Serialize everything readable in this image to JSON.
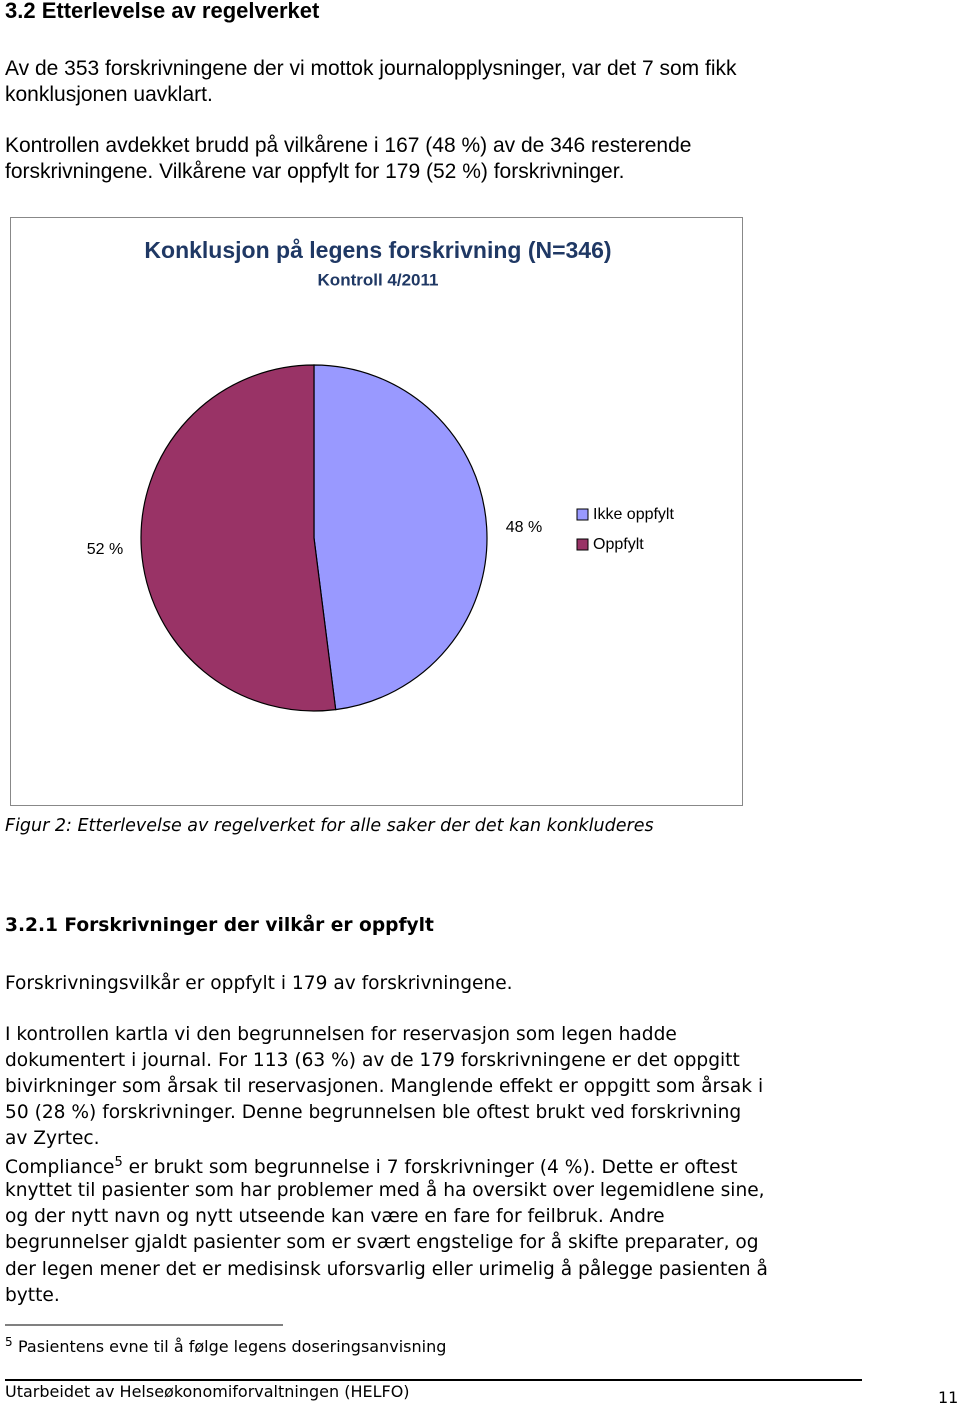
{
  "heading": "3.2 Etterlevelse av regelverket",
  "paragraph_1": [
    "Av de 353 forskrivningene der vi mottok journalopplysninger, var det 7 som fikk",
    "konklusjonen uavklart."
  ],
  "paragraph_2": [
    "Kontrollen avdekket brudd på vilkårene i 167 (48 %) av de 346 resterende",
    "forskrivningene. Vilkårene var oppfylt for 179 (52 %) forskrivninger."
  ],
  "chart_data": {
    "type": "pie",
    "title": "Konklusjon på legens forskrivning (N=346)",
    "subtitle": "Kontroll 4/2011",
    "categories": [
      "Ikke oppfylt",
      "Oppfylt"
    ],
    "values": [
      48,
      52
    ],
    "value_labels": [
      "48 %",
      "52 %"
    ],
    "colors": [
      "#9999ff",
      "#993366"
    ],
    "legend": "right"
  },
  "caption": "Figur 2: Etterlevelse av regelverket for alle saker der det kan konkluderes",
  "subheading": "3.2.1 Forskrivninger der vilkår er oppfylt",
  "paragraph_3": [
    "Forskrivningsvilkår er oppfylt i 179 av forskrivningene."
  ],
  "paragraph_4": [
    "I kontrollen kartla vi den begrunnelsen for reservasjon som legen hadde",
    "dokumentert i journal. For 113 (63 %) av de 179 forskrivningene er det oppgitt",
    "bivirkninger som årsak til reservasjonen. Manglende effekt er oppgitt som årsak i",
    "50 (28 %) forskrivninger. Denne begrunnelsen ble oftest brukt ved forskrivning",
    "av Zyrtec."
  ],
  "paragraph_5": {
    "first_line": [
      "Compliance",
      "5",
      " er brukt som begrunnelse i 7 forskrivninger (4 %). Dette er oftest"
    ],
    "lines": [
      "knyttet til pasienter som har problemer med å ha oversikt over legemidlene sine,",
      "og der nytt navn og nytt utseende kan være en fare for feilbruk. Andre",
      "begrunnelser gjaldt pasienter som er svært engstelige for å skifte preparater, og",
      "der legen mener det er medisinsk uforsvarlig eller urimelig å pålegge pasienten å",
      "bytte."
    ]
  },
  "footnote": {
    "number": "5",
    "text": "Pasientens evne til å følge legens doseringsanvisning"
  },
  "footer": {
    "text": "Utarbeidet av Helseøkonomiforvaltningen (HELFO)",
    "page": "11"
  }
}
